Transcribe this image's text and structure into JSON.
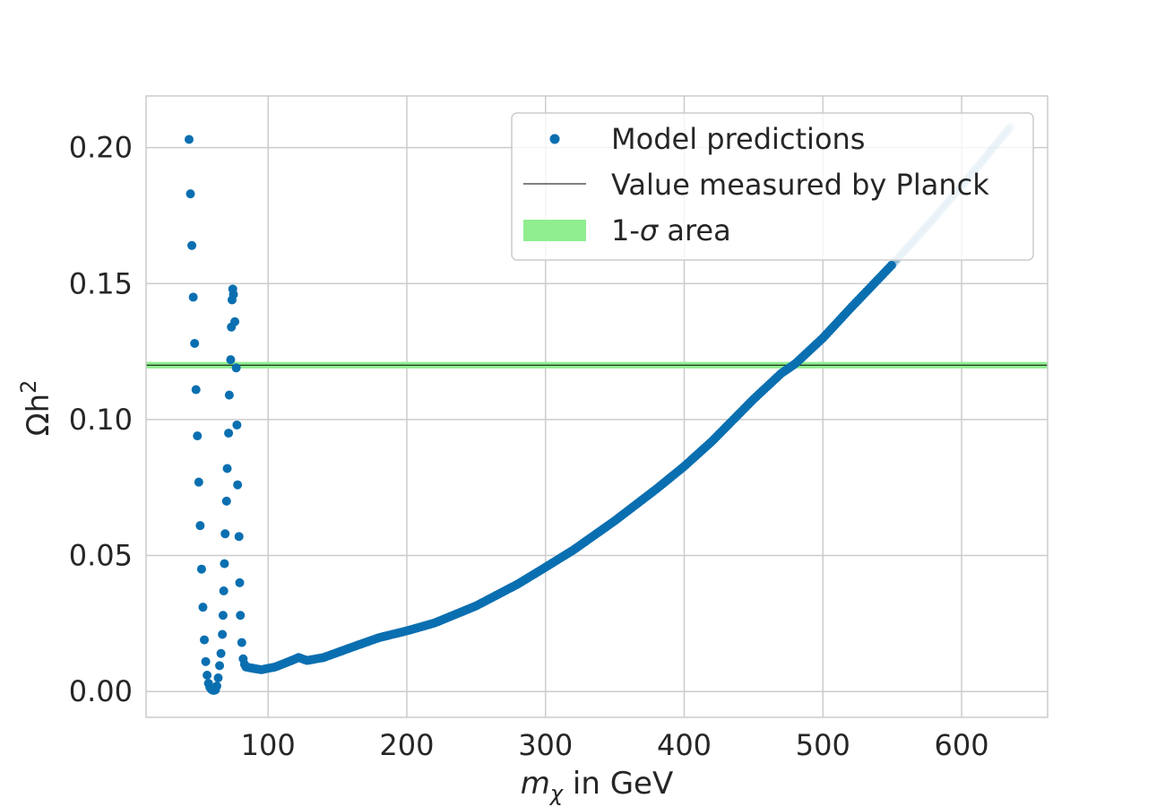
{
  "chart_data": {
    "type": "scatter",
    "title": "",
    "xlabel": {
      "main": "m",
      "sub": "χ",
      "rest": " in GeV"
    },
    "ylabel": {
      "main": "Ωh",
      "sup": "2"
    },
    "xlim": [
      12,
      662
    ],
    "ylim": [
      -0.0095,
      0.219
    ],
    "xticks": [
      100,
      200,
      300,
      400,
      500,
      600
    ],
    "xtick_labels": [
      "100",
      "200",
      "300",
      "400",
      "500",
      "600"
    ],
    "yticks": [
      0.0,
      0.05,
      0.1,
      0.15,
      0.2
    ],
    "ytick_labels": [
      "0.00",
      "0.05",
      "0.10",
      "0.15",
      "0.20"
    ],
    "grid": true,
    "legend_position": "top-right",
    "colors": {
      "points": "#0a6fb0",
      "planck_line": "#000000",
      "sigma_band": "#90ee90",
      "grid": "#cccccc",
      "frame": "#cccccc"
    },
    "planck": {
      "value": 0.12,
      "sigma": 0.0012
    },
    "legend": [
      {
        "label": "Model predictions",
        "kind": "marker"
      },
      {
        "label": "Value measured by Planck",
        "kind": "line"
      },
      {
        "label_prefix": "1-",
        "label_symbol": "σ",
        "label_suffix": " area",
        "kind": "patch"
      }
    ],
    "series": [
      {
        "name": "Model predictions",
        "sparse_points": [
          [
            43,
            0.203
          ],
          [
            44,
            0.183
          ],
          [
            45,
            0.164
          ],
          [
            46,
            0.145
          ],
          [
            47,
            0.128
          ],
          [
            48,
            0.111
          ],
          [
            49,
            0.094
          ],
          [
            50,
            0.077
          ],
          [
            51,
            0.061
          ],
          [
            52,
            0.045
          ],
          [
            53,
            0.031
          ],
          [
            54,
            0.019
          ],
          [
            55,
            0.011
          ],
          [
            56,
            0.006
          ],
          [
            57,
            0.003
          ],
          [
            58,
            0.0015
          ],
          [
            59,
            0.0008
          ],
          [
            60,
            0.0005
          ],
          [
            61,
            0.0004
          ],
          [
            62,
            0.0006
          ],
          [
            63,
            0.002
          ],
          [
            64,
            0.005
          ],
          [
            65,
            0.0095
          ],
          [
            66,
            0.014
          ],
          [
            67,
            0.021
          ],
          [
            67.5,
            0.028
          ],
          [
            68,
            0.037
          ],
          [
            68.5,
            0.047
          ],
          [
            69,
            0.058
          ],
          [
            70,
            0.07
          ],
          [
            70.5,
            0.082
          ],
          [
            71.5,
            0.095
          ],
          [
            72,
            0.109
          ],
          [
            73,
            0.122
          ],
          [
            73.5,
            0.134
          ],
          [
            74,
            0.144
          ],
          [
            74.5,
            0.148
          ],
          [
            75,
            0.146
          ],
          [
            76,
            0.136
          ],
          [
            77,
            0.119
          ],
          [
            77.5,
            0.098
          ],
          [
            78,
            0.076
          ],
          [
            79,
            0.057
          ],
          [
            79.5,
            0.04
          ],
          [
            80,
            0.028
          ],
          [
            81,
            0.018
          ],
          [
            82,
            0.012
          ],
          [
            83,
            0.01
          ],
          [
            84,
            0.009
          ],
          [
            86,
            0.0088
          ]
        ],
        "curve_knots": [
          [
            86,
            0.0088
          ],
          [
            95,
            0.008
          ],
          [
            105,
            0.009
          ],
          [
            115,
            0.011
          ],
          [
            122,
            0.0125
          ],
          [
            128,
            0.0114
          ],
          [
            140,
            0.0125
          ],
          [
            160,
            0.0162
          ],
          [
            180,
            0.0198
          ],
          [
            200,
            0.0223
          ],
          [
            220,
            0.0252
          ],
          [
            250,
            0.0315
          ],
          [
            280,
            0.0395
          ],
          [
            300,
            0.0457
          ],
          [
            320,
            0.052
          ],
          [
            350,
            0.0628
          ],
          [
            380,
            0.0745
          ],
          [
            400,
            0.0828
          ],
          [
            420,
            0.092
          ],
          [
            450,
            0.1075
          ],
          [
            470,
            0.117
          ],
          [
            480,
            0.1205
          ],
          [
            500,
            0.13
          ],
          [
            520,
            0.141
          ],
          [
            550,
            0.157
          ],
          [
            580,
            0.174
          ],
          [
            610,
            0.192
          ],
          [
            635,
            0.2075
          ]
        ],
        "faded_from_x": 550
      }
    ]
  }
}
